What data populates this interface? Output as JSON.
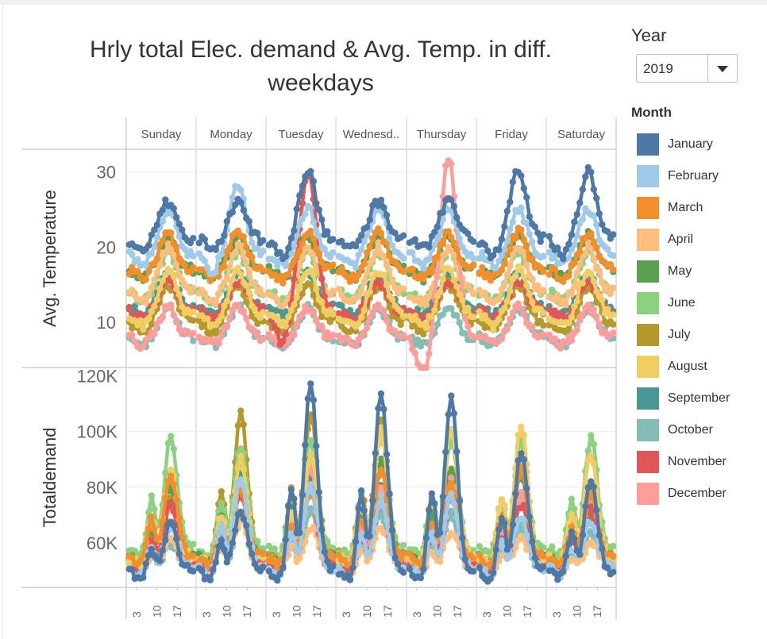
{
  "title": "Hrly total Elec. demand & Avg. Temp. in diff. weekdays",
  "year_filter": {
    "label": "Year",
    "value": "2019"
  },
  "legend": {
    "title": "Month",
    "items": [
      {
        "label": "January",
        "color": "#4e79a7"
      },
      {
        "label": "February",
        "color": "#a0cbe8"
      },
      {
        "label": "March",
        "color": "#f28e2b"
      },
      {
        "label": "April",
        "color": "#ffbe7d"
      },
      {
        "label": "May",
        "color": "#59a14f"
      },
      {
        "label": "June",
        "color": "#8cd17d"
      },
      {
        "label": "July",
        "color": "#b6992d"
      },
      {
        "label": "August",
        "color": "#f1ce63"
      },
      {
        "label": "September",
        "color": "#499894"
      },
      {
        "label": "October",
        "color": "#86bcb6"
      },
      {
        "label": "November",
        "color": "#e15759"
      },
      {
        "label": "December",
        "color": "#ff9d9a"
      }
    ]
  },
  "chart_data": [
    {
      "type": "line",
      "ylabel": "Avg. Temperature",
      "columns": [
        "Sunday",
        "Monday",
        "Tuesday",
        "Wednesd..",
        "Thursday",
        "Friday",
        "Saturday"
      ],
      "x_ticks": [
        "3",
        "10",
        "17"
      ],
      "y_ticks": [
        "10",
        "20",
        "30"
      ],
      "y_tick_values": [
        10,
        20,
        30
      ],
      "ylim": [
        4,
        33
      ],
      "grid": true,
      "series_profile": {
        "base": [
          21,
          19,
          17,
          14,
          17,
          14,
          10,
          11,
          12,
          8,
          11.5,
          8
        ],
        "amp": [
          5,
          6,
          5,
          6,
          4.5,
          5.5,
          5,
          6,
          4.5,
          4,
          4,
          4
        ],
        "peak_hour": 14
      },
      "highlights": [
        {
          "series": "January",
          "column": "Tuesday",
          "peak": 30
        },
        {
          "series": "November",
          "column": "Tuesday",
          "peak": 30
        },
        {
          "series": "December",
          "column": "Thursday",
          "peak": 32
        },
        {
          "series": "January",
          "column": "Friday",
          "peak": 30
        },
        {
          "series": "January",
          "column": "Saturday",
          "peak": 30
        },
        {
          "series": "February",
          "column": "Monday",
          "peak": 28
        }
      ]
    },
    {
      "type": "line",
      "ylabel": "Totaldemand",
      "columns": [
        "Sunday",
        "Monday",
        "Tuesday",
        "Wednesd..",
        "Thursday",
        "Friday",
        "Saturday"
      ],
      "x_ticks": [
        "3",
        "10",
        "17"
      ],
      "y_ticks": [
        "60K",
        "80K",
        "100K",
        "120K"
      ],
      "y_tick_values": [
        60000,
        80000,
        100000,
        120000
      ],
      "ylim": [
        44000,
        123000
      ],
      "grid": true,
      "series_profile": {
        "base": [
          50000,
          51000,
          55000,
          52000,
          55000,
          58000,
          56000,
          55000,
          55000,
          52000,
          53000,
          54000
        ],
        "weekday_peak": [
          [
            68000,
            72000,
            118000,
            113000,
            113000,
            93000,
            82000
          ],
          [
            66000,
            84000,
            82000,
            76000,
            78000,
            70000,
            68000
          ],
          [
            85000,
            80000,
            78000,
            87000,
            82000,
            88000,
            78000
          ],
          [
            62000,
            68000,
            66000,
            66000,
            64000,
            62000,
            60000
          ],
          [
            80000,
            86000,
            92000,
            90000,
            88000,
            85000,
            80000
          ],
          [
            99000,
            95000,
            98000,
            100000,
            99000,
            98000,
            98000
          ],
          [
            75000,
            106000,
            107000,
            105000,
            100000,
            88000,
            80000
          ],
          [
            86000,
            90000,
            93000,
            100000,
            102000,
            102000,
            92000
          ],
          [
            68000,
            90000,
            85000,
            80000,
            78000,
            75000,
            70000
          ],
          [
            60000,
            70000,
            72000,
            70000,
            70000,
            66000,
            64000
          ],
          [
            74000,
            78000,
            80000,
            76000,
            78000,
            74000,
            72000
          ],
          [
            72000,
            82000,
            88000,
            80000,
            82000,
            78000,
            76000
          ]
        ],
        "peak_hour": 15
      }
    }
  ]
}
